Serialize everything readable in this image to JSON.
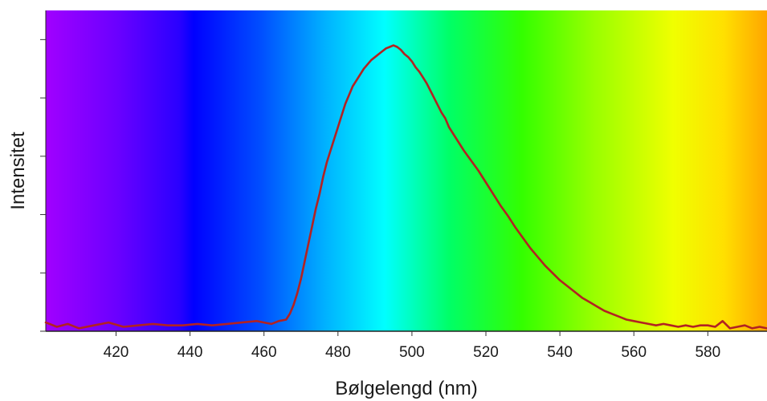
{
  "chart_data": {
    "type": "line",
    "xlabel": "Bølgelengd (nm)",
    "ylabel": "Intensitet",
    "xlim": [
      401,
      596
    ],
    "ylim": [
      0,
      1.1
    ],
    "xticks": [
      420,
      440,
      460,
      480,
      500,
      520,
      540,
      560,
      580
    ],
    "yticks": [
      0,
      0.2,
      0.4,
      0.6,
      0.8,
      1.0
    ],
    "show_ytick_labels": false,
    "grid": false,
    "background": "visible-spectrum gradient (violet to orange)",
    "series": [
      {
        "color": "#b22222",
        "x": [
          401,
          404,
          407,
          410,
          414,
          418,
          422,
          426,
          430,
          434,
          438,
          442,
          446,
          450,
          454,
          458,
          460,
          462,
          464,
          466,
          467,
          468,
          469,
          470,
          471,
          472,
          473,
          474,
          475,
          476,
          477,
          478,
          479,
          480,
          481,
          482,
          483,
          484,
          485,
          486,
          487,
          488,
          489,
          490,
          491,
          492,
          493,
          494,
          495,
          496,
          497,
          498,
          499,
          500,
          501,
          502,
          503,
          504,
          505,
          506,
          507,
          508,
          509,
          510,
          512,
          514,
          516,
          518,
          520,
          522,
          524,
          526,
          528,
          530,
          532,
          534,
          536,
          538,
          540,
          542,
          544,
          546,
          548,
          550,
          552,
          554,
          556,
          558,
          560,
          562,
          564,
          566,
          568,
          570,
          572,
          574,
          576,
          578,
          580,
          582,
          584,
          586,
          588,
          590,
          592,
          594,
          596
        ],
        "values": [
          0.03,
          0.015,
          0.025,
          0.01,
          0.02,
          0.03,
          0.015,
          0.02,
          0.025,
          0.02,
          0.02,
          0.025,
          0.02,
          0.025,
          0.03,
          0.035,
          0.03,
          0.025,
          0.035,
          0.04,
          0.06,
          0.09,
          0.13,
          0.18,
          0.24,
          0.3,
          0.36,
          0.42,
          0.47,
          0.53,
          0.58,
          0.62,
          0.66,
          0.7,
          0.74,
          0.78,
          0.81,
          0.84,
          0.86,
          0.88,
          0.9,
          0.915,
          0.93,
          0.94,
          0.95,
          0.96,
          0.97,
          0.975,
          0.98,
          0.975,
          0.965,
          0.95,
          0.94,
          0.925,
          0.905,
          0.89,
          0.87,
          0.85,
          0.825,
          0.8,
          0.775,
          0.75,
          0.73,
          0.7,
          0.66,
          0.62,
          0.585,
          0.55,
          0.51,
          0.47,
          0.43,
          0.395,
          0.355,
          0.32,
          0.285,
          0.255,
          0.225,
          0.2,
          0.175,
          0.155,
          0.135,
          0.115,
          0.1,
          0.085,
          0.07,
          0.06,
          0.05,
          0.04,
          0.035,
          0.03,
          0.025,
          0.02,
          0.025,
          0.02,
          0.015,
          0.02,
          0.015,
          0.02,
          0.02,
          0.015,
          0.035,
          0.01,
          0.015,
          0.02,
          0.01,
          0.015,
          0.01
        ]
      }
    ]
  }
}
